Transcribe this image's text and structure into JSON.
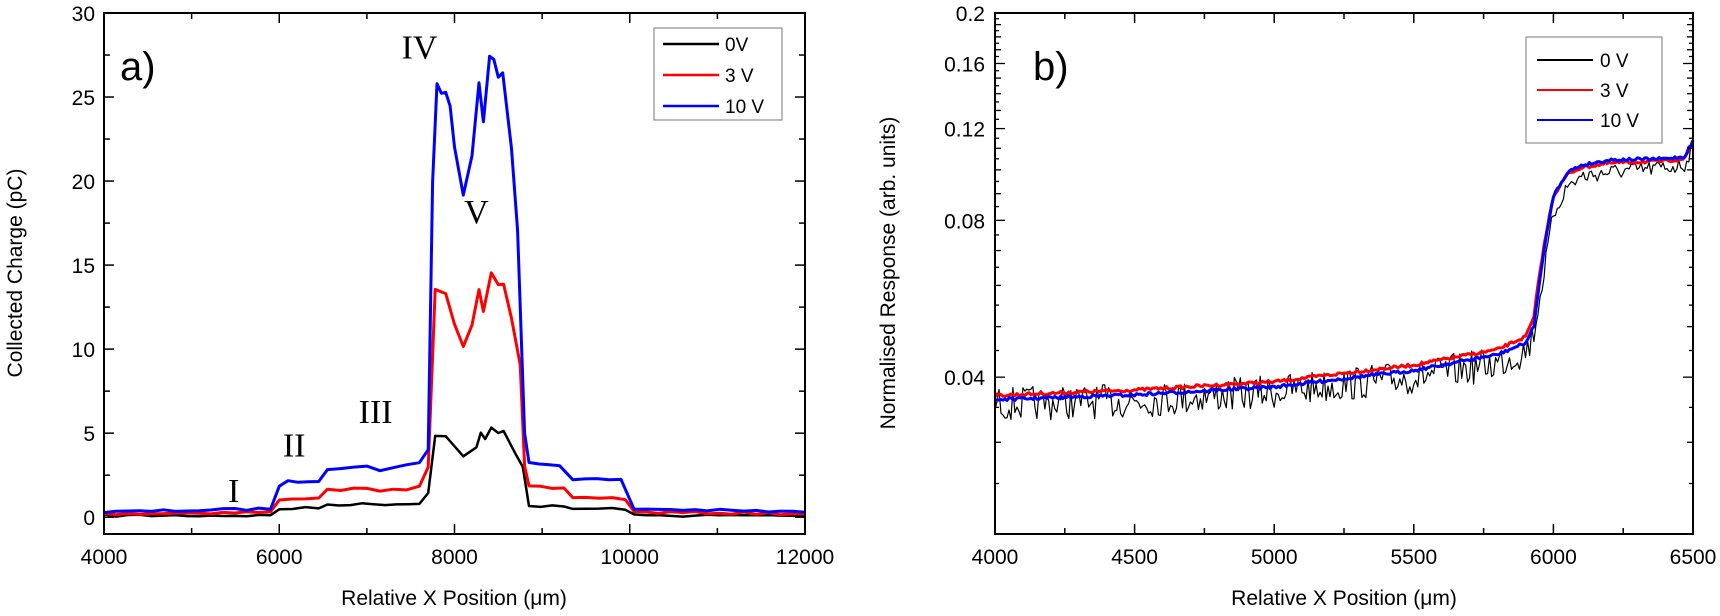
{
  "chart_data": [
    {
      "type": "line",
      "panel_label": "a)",
      "xlabel": "Relative X Position (μm)",
      "ylabel": "Collected Charge (pC)",
      "xlim": [
        4000,
        12000
      ],
      "ylim": [
        -1,
        30
      ],
      "xticks": [
        4000,
        6000,
        8000,
        10000,
        12000
      ],
      "yticks": [
        0,
        5,
        10,
        15,
        20,
        25,
        30
      ],
      "y_scale": "linear",
      "grid": false,
      "legend_position": "top-right",
      "annotations": [
        {
          "text": "I",
          "x": 5480,
          "y": 0.9
        },
        {
          "text": "II",
          "x": 6170,
          "y": 3.6
        },
        {
          "text": "III",
          "x": 7100,
          "y": 5.6
        },
        {
          "text": "IV",
          "x": 7600,
          "y": 27.3
        },
        {
          "text": "V",
          "x": 8250,
          "y": 17.5
        }
      ],
      "series": [
        {
          "name": "0V",
          "color": "#000000",
          "x": [
            4000,
            5900,
            6000,
            6450,
            6550,
            7600,
            7700,
            7780,
            7900,
            8100,
            8250,
            8300,
            8350,
            8420,
            8500,
            8560,
            8700,
            8780,
            8850,
            9250,
            9350,
            9950,
            10050,
            12000
          ],
          "y": [
            0.1,
            0.1,
            0.5,
            0.55,
            0.75,
            0.8,
            1.5,
            4.9,
            4.8,
            3.6,
            4.2,
            5.0,
            4.6,
            5.3,
            5.0,
            5.1,
            3.8,
            3.0,
            0.7,
            0.6,
            0.5,
            0.5,
            0.1,
            0.1
          ]
        },
        {
          "name": "3 V",
          "color": "#ff0000",
          "x": [
            4000,
            5900,
            6000,
            6450,
            6550,
            7000,
            7150,
            7600,
            7700,
            7780,
            7900,
            8000,
            8100,
            8200,
            8280,
            8330,
            8420,
            8500,
            8560,
            8650,
            8750,
            8800,
            8850,
            9250,
            9350,
            9950,
            10050,
            12000
          ],
          "y": [
            0.2,
            0.3,
            1.0,
            1.2,
            1.6,
            1.7,
            1.5,
            1.8,
            3.0,
            13.5,
            13.3,
            11.5,
            10.1,
            11.5,
            13.6,
            12.3,
            14.6,
            13.9,
            13.9,
            11.8,
            9.0,
            3.0,
            1.8,
            1.7,
            1.2,
            1.1,
            0.3,
            0.2
          ]
        },
        {
          "name": "10 V",
          "color": "#0000ff",
          "x": [
            4000,
            5900,
            6000,
            6100,
            6450,
            6550,
            7000,
            7150,
            7300,
            7600,
            7700,
            7750,
            7800,
            7850,
            7900,
            7950,
            8000,
            8100,
            8200,
            8280,
            8330,
            8400,
            8450,
            8500,
            8550,
            8650,
            8720,
            8800,
            8850,
            9200,
            9350,
            9900,
            10050,
            12000
          ],
          "y": [
            0.3,
            0.5,
            1.9,
            2.1,
            2.2,
            2.9,
            3.0,
            2.8,
            3.0,
            3.2,
            4.0,
            20.0,
            25.8,
            25.2,
            25.3,
            24.5,
            22.0,
            19.2,
            21.5,
            25.8,
            23.5,
            27.5,
            27.3,
            26.2,
            26.5,
            22.0,
            17.0,
            5.0,
            3.2,
            3.1,
            2.3,
            2.2,
            0.5,
            0.3
          ]
        }
      ]
    },
    {
      "type": "line",
      "panel_label": "b)",
      "xlabel": "Relative X Position (μm)",
      "ylabel": "Normalised Response (arb. units)",
      "xlim": [
        4000,
        6500
      ],
      "ylim": [
        0.02,
        0.2
      ],
      "xticks": [
        4000,
        4500,
        5000,
        5500,
        6000,
        6500
      ],
      "yticks": [
        0.04,
        0.08,
        0.12,
        0.16,
        0.2
      ],
      "ytick_labels": [
        "0.04",
        "0.08",
        "0.12",
        "0.16",
        "0.2"
      ],
      "y_scale": "log",
      "grid": false,
      "legend_position": "top-right",
      "series": [
        {
          "name": "0 V",
          "color": "#000000",
          "x": [
            4000,
            4500,
            5000,
            5500,
            5800,
            5900,
            5930,
            5960,
            6000,
            6050,
            6100,
            6200,
            6400,
            6470,
            6500
          ],
          "y": [
            0.0355,
            0.036,
            0.0375,
            0.04,
            0.0425,
            0.045,
            0.048,
            0.06,
            0.082,
            0.093,
            0.097,
            0.099,
            0.101,
            0.102,
            0.112
          ]
        },
        {
          "name": "3 V",
          "color": "#ff0000",
          "x": [
            4000,
            4500,
            5000,
            5500,
            5800,
            5900,
            5930,
            5960,
            6000,
            6050,
            6100,
            6200,
            6400,
            6470,
            6500
          ],
          "y": [
            0.0369,
            0.0378,
            0.0392,
            0.0422,
            0.0452,
            0.0478,
            0.052,
            0.068,
            0.089,
            0.098,
            0.101,
            0.103,
            0.104,
            0.105,
            0.113
          ]
        },
        {
          "name": "10 V",
          "color": "#0000ff",
          "x": [
            4000,
            4500,
            5000,
            5500,
            5800,
            5900,
            5930,
            5960,
            6000,
            6050,
            6100,
            6200,
            6400,
            6470,
            6500
          ],
          "y": [
            0.0362,
            0.037,
            0.0383,
            0.0412,
            0.0442,
            0.0465,
            0.05,
            0.066,
            0.089,
            0.099,
            0.102,
            0.1045,
            0.105,
            0.106,
            0.114
          ]
        }
      ]
    }
  ]
}
